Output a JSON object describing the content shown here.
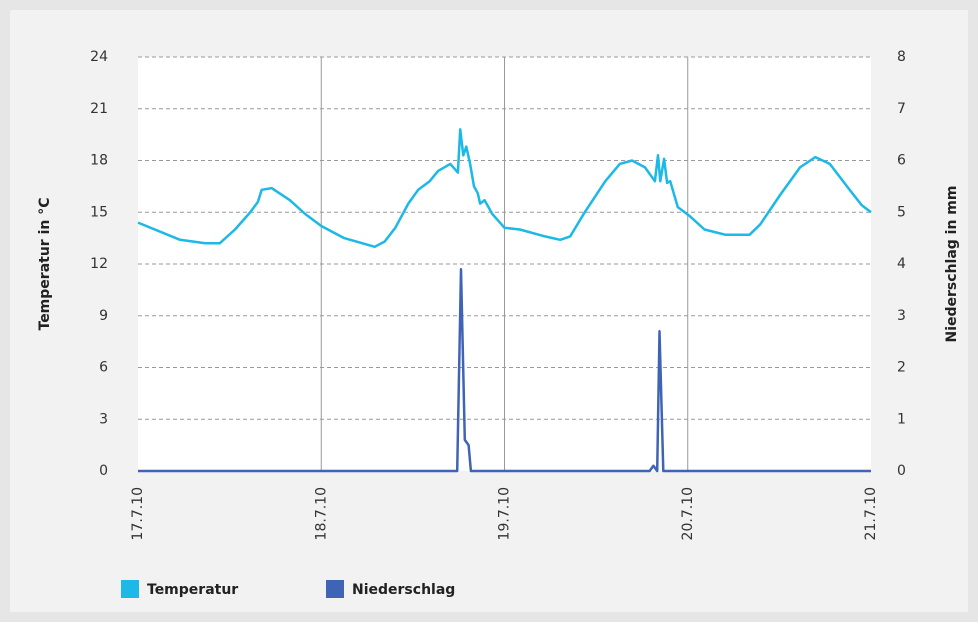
{
  "chart_data": {
    "type": "line",
    "ylabel": "Temperatur in °C",
    "y2label": "Niederschlag in mm",
    "xlim": [
      0,
      96
    ],
    "xticks": [
      {
        "value": 0,
        "label": "17.7.10"
      },
      {
        "value": 24,
        "label": "18.7.10"
      },
      {
        "value": 48,
        "label": "19.7.10"
      },
      {
        "value": 72,
        "label": "20.7.10"
      },
      {
        "value": 96,
        "label": "21.7.10"
      }
    ],
    "ylim": [
      0,
      24
    ],
    "yticks": [
      0,
      3,
      6,
      9,
      12,
      15,
      18,
      21,
      24
    ],
    "y2lim": [
      0,
      8
    ],
    "y2ticks": [
      0,
      1,
      2,
      3,
      4,
      5,
      6,
      7,
      8
    ],
    "grid": true,
    "legend": "bottom-left",
    "series": [
      {
        "name": "Temperatur",
        "color": "#1cb8e8",
        "x": [
          0,
          5.5,
          8.8,
          10.7,
          12.7,
          14.7,
          15.7,
          16.2,
          17.5,
          19.9,
          21.9,
          24,
          27,
          31,
          32.3,
          33.7,
          35.4,
          36.7,
          38.2,
          39.3,
          40.9,
          41.9,
          42.2,
          42.6,
          43.0,
          43.5,
          44.0,
          44.5,
          44.8,
          45.4,
          46.4,
          47.4,
          48,
          50,
          53.3,
          55.3,
          56.6,
          58.5,
          61.2,
          63.1,
          64.7,
          66.4,
          67.7,
          68.1,
          68.4,
          68.9,
          69.3,
          69.7,
          70.7,
          72.2,
          74.2,
          76.9,
          80.1,
          81.5,
          84.1,
          86.7,
          88.7,
          90.6,
          93.2,
          94.8,
          96
        ],
        "values": [
          14.4,
          13.4,
          13.2,
          13.2,
          14.0,
          15.0,
          15.6,
          16.3,
          16.4,
          15.7,
          14.9,
          14.2,
          13.5,
          13.0,
          13.3,
          14.1,
          15.5,
          16.3,
          16.8,
          17.4,
          17.8,
          17.3,
          19.8,
          18.3,
          18.8,
          17.8,
          16.5,
          16.1,
          15.5,
          15.7,
          14.9,
          14.4,
          14.1,
          14.0,
          13.6,
          13.4,
          13.6,
          15.0,
          16.8,
          17.8,
          18.0,
          17.6,
          16.8,
          18.3,
          16.8,
          18.1,
          16.7,
          16.8,
          15.3,
          14.8,
          14.0,
          13.7,
          13.7,
          14.3,
          16.0,
          17.6,
          18.2,
          17.8,
          16.3,
          15.4,
          15.0
        ]
      },
      {
        "name": "Niederschlag",
        "color": "#3f64b5",
        "axis": "y2",
        "x": [
          0,
          41.8,
          42.3,
          42.8,
          43.3,
          43.6,
          67.0,
          67.5,
          68.0,
          68.3,
          68.8,
          96
        ],
        "values": [
          0,
          0,
          3.9,
          0.6,
          0.5,
          0,
          0,
          0.1,
          0,
          2.7,
          0,
          0
        ]
      }
    ]
  }
}
